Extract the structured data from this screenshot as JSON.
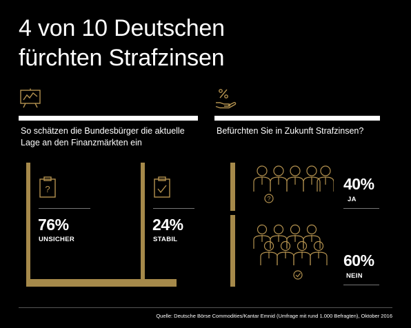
{
  "title_line1": "4 von 10 Deutschen",
  "title_line2": "fürchten Strafzinsen",
  "colors": {
    "background": "#000000",
    "gold": "#a5894a",
    "text": "#ffffff"
  },
  "left": {
    "icon": "chart-board-icon",
    "question": "So schätzen die Bundesbürger die aktuelle Lage an den Finanzmärkten ein"
  },
  "right": {
    "icon": "percent-hand-icon",
    "question": "Befürchten Sie in Zukunft Strafzinsen?"
  },
  "chart_data": [
    {
      "type": "bar",
      "title": "So schätzen die Bundesbürger die aktuelle Lage an den Finanzmärkten ein",
      "categories": [
        "UNSICHER",
        "STABIL"
      ],
      "values": [
        76,
        24
      ],
      "value_labels": [
        "76%",
        "24%"
      ],
      "icons": [
        "clipboard-question-icon",
        "clipboard-check-icon"
      ]
    },
    {
      "type": "bar",
      "title": "Befürchten Sie in Zukunft Strafzinsen?",
      "categories": [
        "JA",
        "NEIN"
      ],
      "values": [
        40,
        60
      ],
      "value_labels": [
        "40%",
        "60%"
      ],
      "icons": [
        "people-question-icon",
        "people-check-icon"
      ]
    }
  ],
  "source": "Quelle: Deutsche Börse Commodities/Kantar Emnid (Umfrage mit rund 1.000 Befragten), Oktober 2016"
}
